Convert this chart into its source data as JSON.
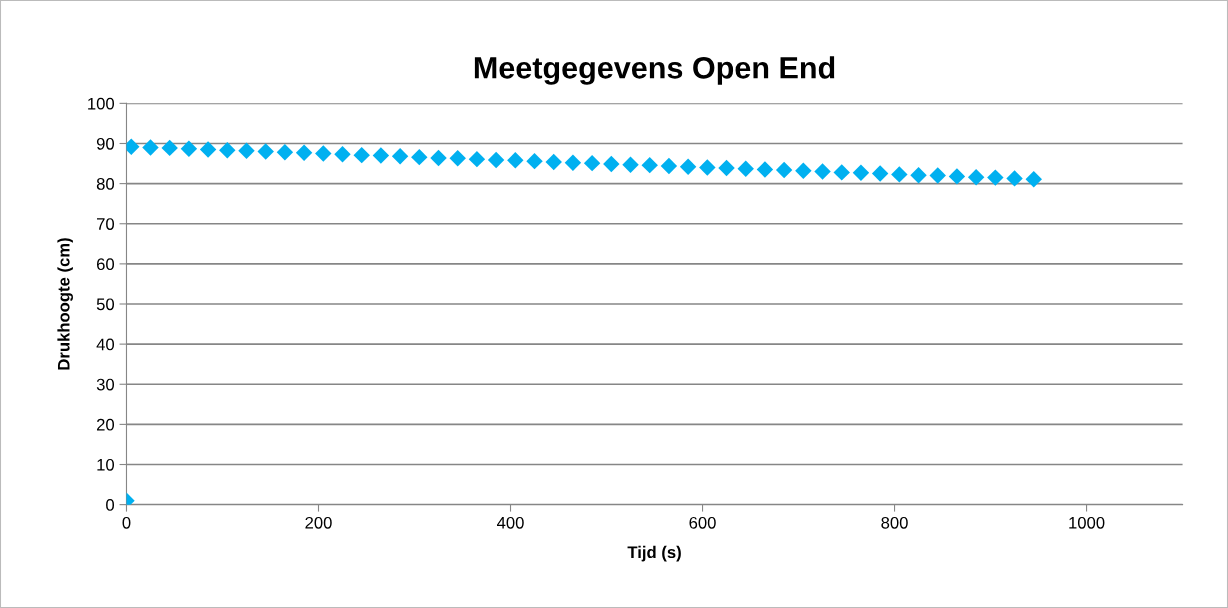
{
  "chart_data": {
    "type": "scatter",
    "title": "Meetgegevens Open End",
    "xlabel": "Tijd (s)",
    "ylabel": "Drukhoogte (cm)",
    "x": [
      0,
      5,
      25,
      45,
      65,
      85,
      105,
      125,
      145,
      165,
      185,
      205,
      225,
      245,
      265,
      285,
      305,
      325,
      345,
      365,
      385,
      405,
      425,
      445,
      465,
      485,
      505,
      525,
      545,
      565,
      585,
      605,
      625,
      645,
      665,
      685,
      705,
      725,
      745,
      765,
      785,
      805,
      825,
      845,
      865,
      885,
      905,
      925,
      945
    ],
    "series": [
      {
        "color": "#00b0f0",
        "values": [
          1,
          89.2,
          89.0,
          88.9,
          88.7,
          88.5,
          88.3,
          88.2,
          88.0,
          87.8,
          87.7,
          87.5,
          87.3,
          87.1,
          87.0,
          86.8,
          86.6,
          86.4,
          86.3,
          86.1,
          85.9,
          85.8,
          85.6,
          85.4,
          85.2,
          85.1,
          84.9,
          84.7,
          84.6,
          84.4,
          84.2,
          84.0,
          83.9,
          83.7,
          83.5,
          83.4,
          83.2,
          83.0,
          82.8,
          82.7,
          82.5,
          82.3,
          82.1,
          82.0,
          81.8,
          81.6,
          81.5,
          81.3,
          81.1
        ]
      }
    ],
    "xlim": [
      0,
      1100
    ],
    "xticks": [
      0,
      200,
      400,
      600,
      800,
      1000
    ],
    "ylim": [
      0,
      100
    ],
    "yticks": [
      0,
      10,
      20,
      30,
      40,
      50,
      60,
      70,
      80,
      90,
      100
    ],
    "grid": "y",
    "marker": "diamond",
    "legend": false
  }
}
